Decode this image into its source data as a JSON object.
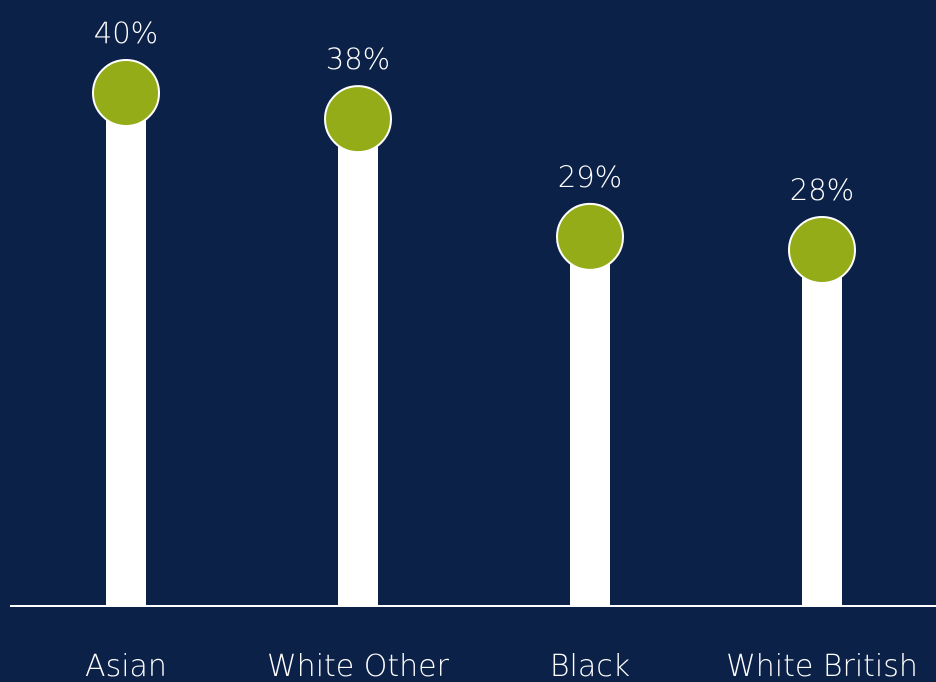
{
  "chart_data": {
    "type": "bar",
    "categories": [
      "Asian",
      "White Other",
      "Black",
      "White British"
    ],
    "values": [
      40,
      38,
      29,
      28
    ],
    "value_labels": [
      "40%",
      "38%",
      "29%",
      "28%"
    ],
    "title": "",
    "xlabel": "",
    "ylabel": "",
    "ylim": [
      0,
      40
    ],
    "grid": false,
    "legend": "none"
  },
  "colors": {
    "background": "#0b2148",
    "stem": "#ffffff",
    "marker_fill": "#93ac17",
    "marker_stroke": "#ffffff",
    "axis": "#ffffff",
    "text": "#ffffff"
  }
}
